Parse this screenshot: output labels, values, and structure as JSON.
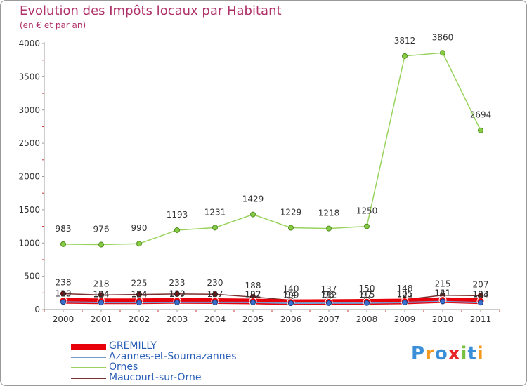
{
  "title": "Evolution des Impôts locaux par Habitant",
  "subtitle": "(en € et par an)",
  "chart_data": {
    "type": "line",
    "title": "Evolution des Impôts locaux par Habitant",
    "subtitle": "(en € et par an)",
    "xlabel": "",
    "ylabel": "",
    "categories": [
      "2000",
      "2001",
      "2002",
      "2003",
      "2004",
      "2005",
      "2006",
      "2007",
      "2008",
      "2009",
      "2010",
      "2011"
    ],
    "ylim": [
      0,
      4000
    ],
    "yticks": [
      0,
      500,
      1000,
      1500,
      2000,
      2500,
      3000,
      3500,
      4000
    ],
    "grid": false,
    "legend_position": "bottom-left",
    "series": [
      {
        "name": "GREMILLY",
        "color": "#e8000b",
        "values": [
          130,
          124,
          124,
          130,
          127,
          122,
          109,
          112,
          115,
          121,
          141,
          124
        ]
      },
      {
        "name": "Azannes-et-Soumazannes",
        "color": "#7799cc",
        "values": [
          113,
          104,
          104,
          107,
          107,
          107,
          94,
          96,
          97,
          105,
          121,
          103
        ]
      },
      {
        "name": "Ornes",
        "color": "#99d35d",
        "values": [
          983,
          976,
          990,
          1193,
          1231,
          1429,
          1229,
          1218,
          1250,
          3812,
          3860,
          2694
        ]
      },
      {
        "name": "Maucourt-sur-Orne",
        "color": "#7a3030",
        "values": [
          238,
          218,
          225,
          233,
          230,
          188,
          140,
          137,
          150,
          148,
          215,
          207
        ]
      }
    ],
    "data_labels": [
      [
        "238",
        "218",
        "225",
        "233",
        "230",
        "188",
        "140",
        "137",
        "150",
        "148",
        "215",
        "207"
      ],
      [
        "983",
        "976",
        "990",
        "1193",
        "1231",
        "1429",
        "1229",
        "1218",
        "1250",
        "3812",
        "3860",
        "2694"
      ],
      [
        "130",
        "124",
        "124",
        "130",
        "127",
        "122",
        "109",
        "112",
        "115",
        "121",
        "141",
        "124"
      ],
      [
        "113",
        "104",
        "104",
        "107",
        "107",
        "107",
        "94",
        "96",
        "97",
        "105",
        "121",
        "103"
      ]
    ]
  },
  "legend": [
    {
      "label": "GREMILLY",
      "color": "#e8000b"
    },
    {
      "label": "Azannes-et-Soumazannes",
      "color": "#7799cc"
    },
    {
      "label": "Ornes",
      "color": "#99d35d"
    },
    {
      "label": "Maucourt-sur-Orne",
      "color": "#7a3030"
    }
  ],
  "logo": {
    "letters": [
      "P",
      "r",
      "o",
      "x",
      "i",
      "t",
      "i"
    ],
    "colors": [
      "#3a8fd8",
      "#f39a1e",
      "#3a8fd8",
      "#e8262a",
      "#7cc242",
      "#3a8fd8",
      "#f39a1e"
    ]
  }
}
